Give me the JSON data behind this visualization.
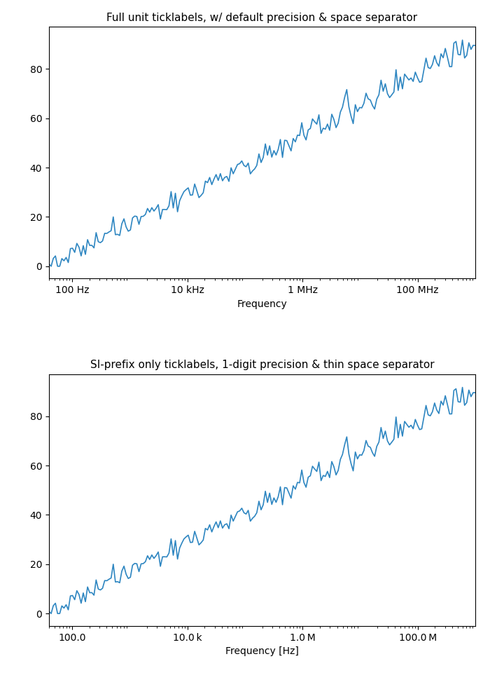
{
  "title1": "Full unit ticklabels, w/ default precision & space separator",
  "title2": "SI-prefix only ticklabels, 1-digit precision & thin space separator",
  "xlabel1": "Frequency",
  "xlabel2": "Frequency [Hz]",
  "line_color": "#2e86c1",
  "xmin_log": 1.6,
  "xmax_log": 9.0,
  "ymin": -5,
  "ymax": 97,
  "seed": 42,
  "n_points": 200,
  "xticks_top": [
    100,
    10000,
    1000000,
    100000000
  ],
  "xticklabels_top": [
    "100 Hz",
    "10 kHz",
    "1 MHz",
    "100 MHz"
  ],
  "xticks_bot": [
    100,
    10000,
    1000000,
    100000000
  ],
  "xticklabels_bot": [
    "100.0",
    "10.0 k",
    "1.0 M",
    "100.0 M"
  ]
}
